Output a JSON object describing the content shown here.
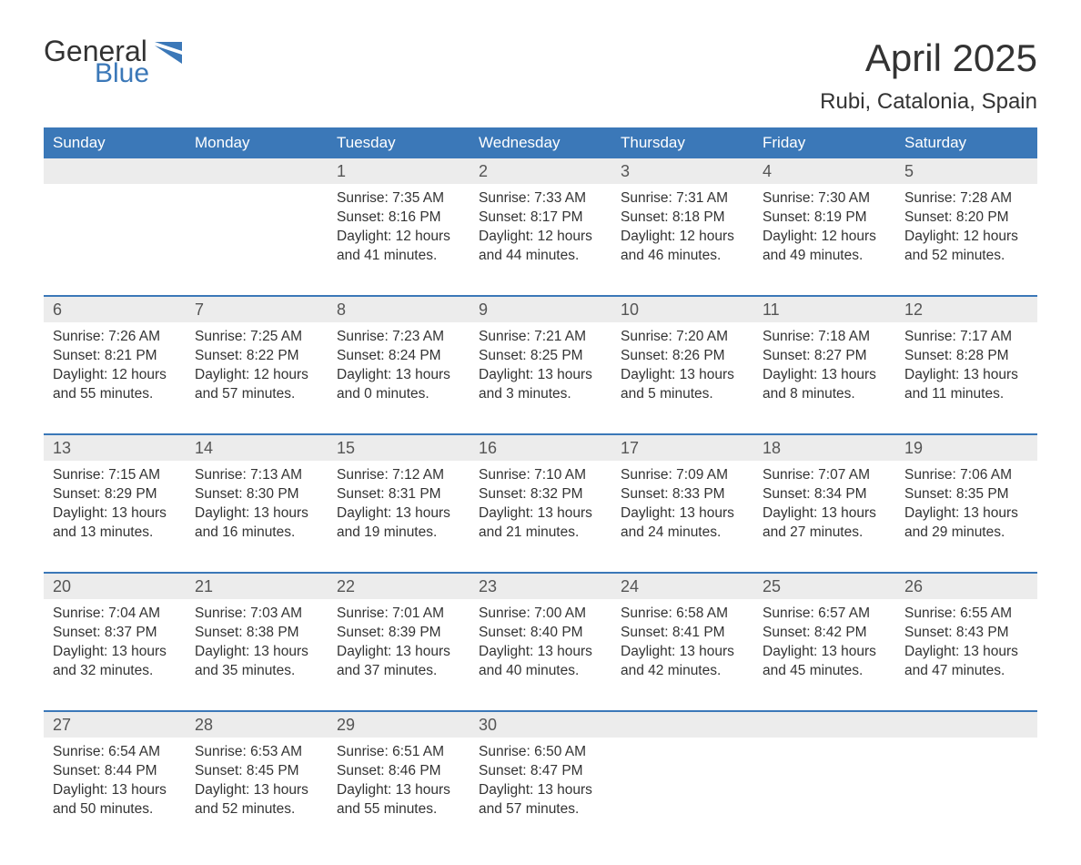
{
  "logo": {
    "text_general": "General",
    "text_blue": "Blue",
    "icon_color": "#3b78b8",
    "text_dark": "#333333"
  },
  "title": "April 2025",
  "location": "Rubi, Catalonia, Spain",
  "colors": {
    "header_bg": "#3b78b8",
    "header_text": "#ffffff",
    "date_row_bg": "#ececec",
    "week_border": "#3b78b8",
    "body_text": "#333333",
    "date_text": "#555555",
    "background": "#ffffff"
  },
  "typography": {
    "title_fontsize": 42,
    "location_fontsize": 24,
    "day_header_fontsize": 17,
    "date_fontsize": 18,
    "cell_fontsize": 15.5,
    "font_family": "Arial"
  },
  "day_names": [
    "Sunday",
    "Monday",
    "Tuesday",
    "Wednesday",
    "Thursday",
    "Friday",
    "Saturday"
  ],
  "weeks": [
    {
      "dates": [
        "",
        "",
        "1",
        "2",
        "3",
        "4",
        "5"
      ],
      "cells": [
        {
          "sunrise": "",
          "sunset": "",
          "daylight": ""
        },
        {
          "sunrise": "",
          "sunset": "",
          "daylight": ""
        },
        {
          "sunrise": "Sunrise: 7:35 AM",
          "sunset": "Sunset: 8:16 PM",
          "daylight": "Daylight: 12 hours and 41 minutes."
        },
        {
          "sunrise": "Sunrise: 7:33 AM",
          "sunset": "Sunset: 8:17 PM",
          "daylight": "Daylight: 12 hours and 44 minutes."
        },
        {
          "sunrise": "Sunrise: 7:31 AM",
          "sunset": "Sunset: 8:18 PM",
          "daylight": "Daylight: 12 hours and 46 minutes."
        },
        {
          "sunrise": "Sunrise: 7:30 AM",
          "sunset": "Sunset: 8:19 PM",
          "daylight": "Daylight: 12 hours and 49 minutes."
        },
        {
          "sunrise": "Sunrise: 7:28 AM",
          "sunset": "Sunset: 8:20 PM",
          "daylight": "Daylight: 12 hours and 52 minutes."
        }
      ]
    },
    {
      "dates": [
        "6",
        "7",
        "8",
        "9",
        "10",
        "11",
        "12"
      ],
      "cells": [
        {
          "sunrise": "Sunrise: 7:26 AM",
          "sunset": "Sunset: 8:21 PM",
          "daylight": "Daylight: 12 hours and 55 minutes."
        },
        {
          "sunrise": "Sunrise: 7:25 AM",
          "sunset": "Sunset: 8:22 PM",
          "daylight": "Daylight: 12 hours and 57 minutes."
        },
        {
          "sunrise": "Sunrise: 7:23 AM",
          "sunset": "Sunset: 8:24 PM",
          "daylight": "Daylight: 13 hours and 0 minutes."
        },
        {
          "sunrise": "Sunrise: 7:21 AM",
          "sunset": "Sunset: 8:25 PM",
          "daylight": "Daylight: 13 hours and 3 minutes."
        },
        {
          "sunrise": "Sunrise: 7:20 AM",
          "sunset": "Sunset: 8:26 PM",
          "daylight": "Daylight: 13 hours and 5 minutes."
        },
        {
          "sunrise": "Sunrise: 7:18 AM",
          "sunset": "Sunset: 8:27 PM",
          "daylight": "Daylight: 13 hours and 8 minutes."
        },
        {
          "sunrise": "Sunrise: 7:17 AM",
          "sunset": "Sunset: 8:28 PM",
          "daylight": "Daylight: 13 hours and 11 minutes."
        }
      ]
    },
    {
      "dates": [
        "13",
        "14",
        "15",
        "16",
        "17",
        "18",
        "19"
      ],
      "cells": [
        {
          "sunrise": "Sunrise: 7:15 AM",
          "sunset": "Sunset: 8:29 PM",
          "daylight": "Daylight: 13 hours and 13 minutes."
        },
        {
          "sunrise": "Sunrise: 7:13 AM",
          "sunset": "Sunset: 8:30 PM",
          "daylight": "Daylight: 13 hours and 16 minutes."
        },
        {
          "sunrise": "Sunrise: 7:12 AM",
          "sunset": "Sunset: 8:31 PM",
          "daylight": "Daylight: 13 hours and 19 minutes."
        },
        {
          "sunrise": "Sunrise: 7:10 AM",
          "sunset": "Sunset: 8:32 PM",
          "daylight": "Daylight: 13 hours and 21 minutes."
        },
        {
          "sunrise": "Sunrise: 7:09 AM",
          "sunset": "Sunset: 8:33 PM",
          "daylight": "Daylight: 13 hours and 24 minutes."
        },
        {
          "sunrise": "Sunrise: 7:07 AM",
          "sunset": "Sunset: 8:34 PM",
          "daylight": "Daylight: 13 hours and 27 minutes."
        },
        {
          "sunrise": "Sunrise: 7:06 AM",
          "sunset": "Sunset: 8:35 PM",
          "daylight": "Daylight: 13 hours and 29 minutes."
        }
      ]
    },
    {
      "dates": [
        "20",
        "21",
        "22",
        "23",
        "24",
        "25",
        "26"
      ],
      "cells": [
        {
          "sunrise": "Sunrise: 7:04 AM",
          "sunset": "Sunset: 8:37 PM",
          "daylight": "Daylight: 13 hours and 32 minutes."
        },
        {
          "sunrise": "Sunrise: 7:03 AM",
          "sunset": "Sunset: 8:38 PM",
          "daylight": "Daylight: 13 hours and 35 minutes."
        },
        {
          "sunrise": "Sunrise: 7:01 AM",
          "sunset": "Sunset: 8:39 PM",
          "daylight": "Daylight: 13 hours and 37 minutes."
        },
        {
          "sunrise": "Sunrise: 7:00 AM",
          "sunset": "Sunset: 8:40 PM",
          "daylight": "Daylight: 13 hours and 40 minutes."
        },
        {
          "sunrise": "Sunrise: 6:58 AM",
          "sunset": "Sunset: 8:41 PM",
          "daylight": "Daylight: 13 hours and 42 minutes."
        },
        {
          "sunrise": "Sunrise: 6:57 AM",
          "sunset": "Sunset: 8:42 PM",
          "daylight": "Daylight: 13 hours and 45 minutes."
        },
        {
          "sunrise": "Sunrise: 6:55 AM",
          "sunset": "Sunset: 8:43 PM",
          "daylight": "Daylight: 13 hours and 47 minutes."
        }
      ]
    },
    {
      "dates": [
        "27",
        "28",
        "29",
        "30",
        "",
        "",
        ""
      ],
      "cells": [
        {
          "sunrise": "Sunrise: 6:54 AM",
          "sunset": "Sunset: 8:44 PM",
          "daylight": "Daylight: 13 hours and 50 minutes."
        },
        {
          "sunrise": "Sunrise: 6:53 AM",
          "sunset": "Sunset: 8:45 PM",
          "daylight": "Daylight: 13 hours and 52 minutes."
        },
        {
          "sunrise": "Sunrise: 6:51 AM",
          "sunset": "Sunset: 8:46 PM",
          "daylight": "Daylight: 13 hours and 55 minutes."
        },
        {
          "sunrise": "Sunrise: 6:50 AM",
          "sunset": "Sunset: 8:47 PM",
          "daylight": "Daylight: 13 hours and 57 minutes."
        },
        {
          "sunrise": "",
          "sunset": "",
          "daylight": ""
        },
        {
          "sunrise": "",
          "sunset": "",
          "daylight": ""
        },
        {
          "sunrise": "",
          "sunset": "",
          "daylight": ""
        }
      ]
    }
  ]
}
